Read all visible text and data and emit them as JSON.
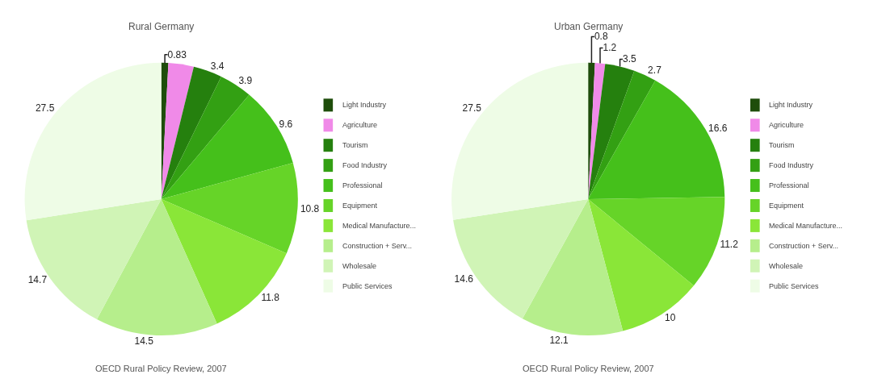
{
  "chart_data": [
    {
      "type": "pie",
      "title": "Rural Germany",
      "categories": [
        "Light Industry",
        "Agriculture",
        "Tourism",
        "Food Industry",
        "Professional",
        "Equipment",
        "Medical Manufacture...",
        "Construction + Serv...",
        "Wholesale",
        "Public Services"
      ],
      "values": [
        0.83,
        3,
        3.4,
        3.9,
        9.6,
        10.8,
        11.8,
        14.5,
        14.7,
        27.5
      ],
      "value_labels": [
        "0.83",
        null,
        "3.4",
        "3.9",
        "9.6",
        "10.8",
        "11.8",
        "14.5",
        "14.7",
        "27.5"
      ],
      "colors": [
        "#1e4d0b",
        "#f08ae8",
        "#25800e",
        "#33a013",
        "#45c01b",
        "#66d428",
        "#8ae638",
        "#b6ee8c",
        "#d0f4b6",
        "#eefce6"
      ],
      "legend": "right",
      "annotations": [
        "OECD Rural Policy Review, 2007"
      ]
    },
    {
      "type": "pie",
      "title": "Urban Germany",
      "categories": [
        "Light Industry",
        "Agriculture",
        "Tourism",
        "Food Industry",
        "Professional",
        "Equipment",
        "Medical Manufacture...",
        "Construction + Serv...",
        "Wholesale",
        "Public Services"
      ],
      "values": [
        0.8,
        1.2,
        3.5,
        2.7,
        16.6,
        11.2,
        10,
        12.1,
        14.6,
        27.5
      ],
      "value_labels": [
        "0.8",
        "1.2",
        "3.5",
        "2.7",
        "16.6",
        "11.2",
        "10",
        "12.1",
        "14.6",
        "27.5"
      ],
      "colors": [
        "#1e4d0b",
        "#f08ae8",
        "#25800e",
        "#33a013",
        "#45c01b",
        "#66d428",
        "#8ae638",
        "#b6ee8c",
        "#d0f4b6",
        "#eefce6"
      ],
      "legend": "right",
      "annotations": [
        "OECD Rural Policy Review, 2007"
      ]
    }
  ]
}
